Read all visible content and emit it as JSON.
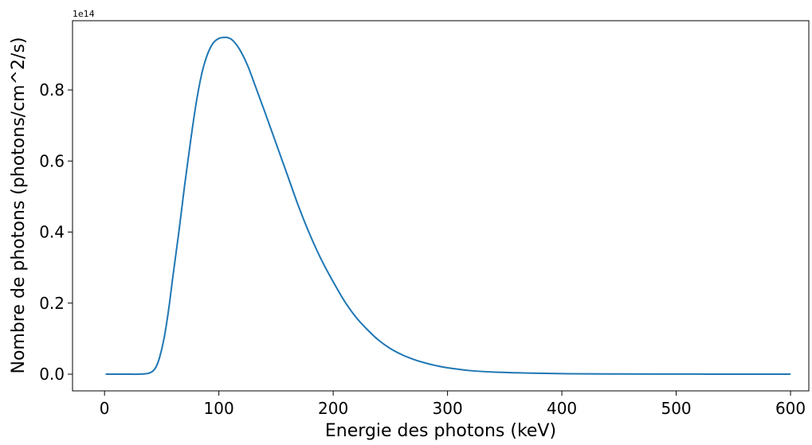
{
  "chart_data": {
    "type": "line",
    "xlabel": "Energie des photons (keV)",
    "ylabel": "Nombre de photons (photons/cm^2/s)",
    "y_offset_label": "1e14",
    "xlim": [
      -28,
      616
    ],
    "ylim": [
      -0.047,
      0.995
    ],
    "x_ticks": [
      0,
      100,
      200,
      300,
      400,
      500,
      600
    ],
    "x_tick_labels": [
      "0",
      "100",
      "200",
      "300",
      "400",
      "500",
      "600"
    ],
    "y_ticks": [
      0.0,
      0.2,
      0.4,
      0.6,
      0.8
    ],
    "y_tick_labels": [
      "0.0",
      "0.2",
      "0.4",
      "0.6",
      "0.8"
    ],
    "grid": false,
    "line_color": "#1f77b4",
    "series": [
      {
        "x": [
          1,
          10,
          20,
          30,
          38,
          42,
          45,
          48,
          52,
          56,
          60,
          65,
          70,
          75,
          80,
          85,
          90,
          95,
          100,
          105,
          108,
          112,
          118,
          125,
          132,
          140,
          150,
          160,
          170,
          180,
          190,
          200,
          210,
          220,
          230,
          240,
          250,
          260,
          270,
          280,
          290,
          300,
          320,
          340,
          360,
          380,
          400,
          420,
          450,
          500,
          550,
          600
        ],
        "values": [
          0.0,
          0.0,
          0.0,
          0.0,
          0.002,
          0.008,
          0.02,
          0.045,
          0.1,
          0.18,
          0.28,
          0.4,
          0.53,
          0.65,
          0.76,
          0.845,
          0.9,
          0.932,
          0.945,
          0.948,
          0.947,
          0.94,
          0.915,
          0.87,
          0.81,
          0.74,
          0.65,
          0.56,
          0.47,
          0.39,
          0.32,
          0.26,
          0.205,
          0.16,
          0.125,
          0.095,
          0.072,
          0.055,
          0.042,
          0.032,
          0.024,
          0.018,
          0.01,
          0.006,
          0.004,
          0.0025,
          0.0015,
          0.001,
          0.0006,
          0.0003,
          0.0001,
          0.0
        ]
      }
    ]
  }
}
